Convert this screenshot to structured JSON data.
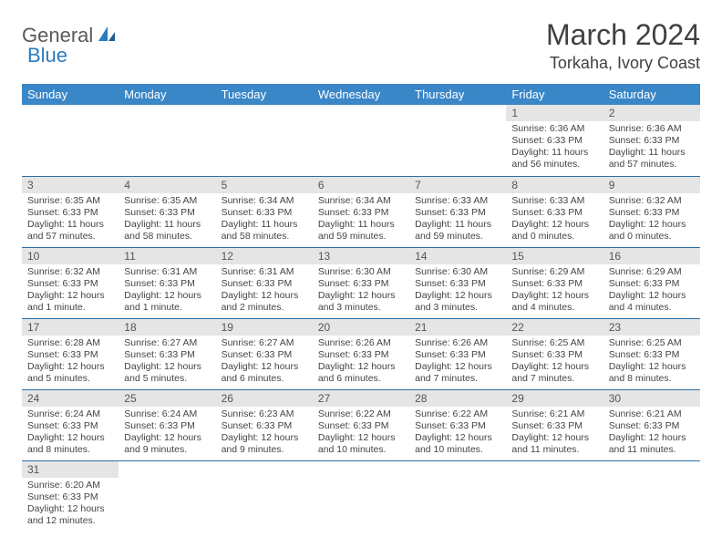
{
  "logo": {
    "part1": "General",
    "part2": "Blue"
  },
  "title": "March 2024",
  "location": "Torkaha, Ivory Coast",
  "colors": {
    "header_bg": "#3a87c8",
    "header_text": "#ffffff",
    "daynum_bg": "#e5e5e5",
    "row_border": "#2b6fa8",
    "logo_blue": "#2b7bbf",
    "logo_gray": "#5a5a5a"
  },
  "weekdays": [
    "Sunday",
    "Monday",
    "Tuesday",
    "Wednesday",
    "Thursday",
    "Friday",
    "Saturday"
  ],
  "weeks": [
    [
      {
        "day": "",
        "lines": []
      },
      {
        "day": "",
        "lines": []
      },
      {
        "day": "",
        "lines": []
      },
      {
        "day": "",
        "lines": []
      },
      {
        "day": "",
        "lines": []
      },
      {
        "day": "1",
        "lines": [
          "Sunrise: 6:36 AM",
          "Sunset: 6:33 PM",
          "Daylight: 11 hours and 56 minutes."
        ]
      },
      {
        "day": "2",
        "lines": [
          "Sunrise: 6:36 AM",
          "Sunset: 6:33 PM",
          "Daylight: 11 hours and 57 minutes."
        ]
      }
    ],
    [
      {
        "day": "3",
        "lines": [
          "Sunrise: 6:35 AM",
          "Sunset: 6:33 PM",
          "Daylight: 11 hours and 57 minutes."
        ]
      },
      {
        "day": "4",
        "lines": [
          "Sunrise: 6:35 AM",
          "Sunset: 6:33 PM",
          "Daylight: 11 hours and 58 minutes."
        ]
      },
      {
        "day": "5",
        "lines": [
          "Sunrise: 6:34 AM",
          "Sunset: 6:33 PM",
          "Daylight: 11 hours and 58 minutes."
        ]
      },
      {
        "day": "6",
        "lines": [
          "Sunrise: 6:34 AM",
          "Sunset: 6:33 PM",
          "Daylight: 11 hours and 59 minutes."
        ]
      },
      {
        "day": "7",
        "lines": [
          "Sunrise: 6:33 AM",
          "Sunset: 6:33 PM",
          "Daylight: 11 hours and 59 minutes."
        ]
      },
      {
        "day": "8",
        "lines": [
          "Sunrise: 6:33 AM",
          "Sunset: 6:33 PM",
          "Daylight: 12 hours and 0 minutes."
        ]
      },
      {
        "day": "9",
        "lines": [
          "Sunrise: 6:32 AM",
          "Sunset: 6:33 PM",
          "Daylight: 12 hours and 0 minutes."
        ]
      }
    ],
    [
      {
        "day": "10",
        "lines": [
          "Sunrise: 6:32 AM",
          "Sunset: 6:33 PM",
          "Daylight: 12 hours and 1 minute."
        ]
      },
      {
        "day": "11",
        "lines": [
          "Sunrise: 6:31 AM",
          "Sunset: 6:33 PM",
          "Daylight: 12 hours and 1 minute."
        ]
      },
      {
        "day": "12",
        "lines": [
          "Sunrise: 6:31 AM",
          "Sunset: 6:33 PM",
          "Daylight: 12 hours and 2 minutes."
        ]
      },
      {
        "day": "13",
        "lines": [
          "Sunrise: 6:30 AM",
          "Sunset: 6:33 PM",
          "Daylight: 12 hours and 3 minutes."
        ]
      },
      {
        "day": "14",
        "lines": [
          "Sunrise: 6:30 AM",
          "Sunset: 6:33 PM",
          "Daylight: 12 hours and 3 minutes."
        ]
      },
      {
        "day": "15",
        "lines": [
          "Sunrise: 6:29 AM",
          "Sunset: 6:33 PM",
          "Daylight: 12 hours and 4 minutes."
        ]
      },
      {
        "day": "16",
        "lines": [
          "Sunrise: 6:29 AM",
          "Sunset: 6:33 PM",
          "Daylight: 12 hours and 4 minutes."
        ]
      }
    ],
    [
      {
        "day": "17",
        "lines": [
          "Sunrise: 6:28 AM",
          "Sunset: 6:33 PM",
          "Daylight: 12 hours and 5 minutes."
        ]
      },
      {
        "day": "18",
        "lines": [
          "Sunrise: 6:27 AM",
          "Sunset: 6:33 PM",
          "Daylight: 12 hours and 5 minutes."
        ]
      },
      {
        "day": "19",
        "lines": [
          "Sunrise: 6:27 AM",
          "Sunset: 6:33 PM",
          "Daylight: 12 hours and 6 minutes."
        ]
      },
      {
        "day": "20",
        "lines": [
          "Sunrise: 6:26 AM",
          "Sunset: 6:33 PM",
          "Daylight: 12 hours and 6 minutes."
        ]
      },
      {
        "day": "21",
        "lines": [
          "Sunrise: 6:26 AM",
          "Sunset: 6:33 PM",
          "Daylight: 12 hours and 7 minutes."
        ]
      },
      {
        "day": "22",
        "lines": [
          "Sunrise: 6:25 AM",
          "Sunset: 6:33 PM",
          "Daylight: 12 hours and 7 minutes."
        ]
      },
      {
        "day": "23",
        "lines": [
          "Sunrise: 6:25 AM",
          "Sunset: 6:33 PM",
          "Daylight: 12 hours and 8 minutes."
        ]
      }
    ],
    [
      {
        "day": "24",
        "lines": [
          "Sunrise: 6:24 AM",
          "Sunset: 6:33 PM",
          "Daylight: 12 hours and 8 minutes."
        ]
      },
      {
        "day": "25",
        "lines": [
          "Sunrise: 6:24 AM",
          "Sunset: 6:33 PM",
          "Daylight: 12 hours and 9 minutes."
        ]
      },
      {
        "day": "26",
        "lines": [
          "Sunrise: 6:23 AM",
          "Sunset: 6:33 PM",
          "Daylight: 12 hours and 9 minutes."
        ]
      },
      {
        "day": "27",
        "lines": [
          "Sunrise: 6:22 AM",
          "Sunset: 6:33 PM",
          "Daylight: 12 hours and 10 minutes."
        ]
      },
      {
        "day": "28",
        "lines": [
          "Sunrise: 6:22 AM",
          "Sunset: 6:33 PM",
          "Daylight: 12 hours and 10 minutes."
        ]
      },
      {
        "day": "29",
        "lines": [
          "Sunrise: 6:21 AM",
          "Sunset: 6:33 PM",
          "Daylight: 12 hours and 11 minutes."
        ]
      },
      {
        "day": "30",
        "lines": [
          "Sunrise: 6:21 AM",
          "Sunset: 6:33 PM",
          "Daylight: 12 hours and 11 minutes."
        ]
      }
    ],
    [
      {
        "day": "31",
        "lines": [
          "Sunrise: 6:20 AM",
          "Sunset: 6:33 PM",
          "Daylight: 12 hours and 12 minutes."
        ]
      },
      {
        "day": "",
        "lines": []
      },
      {
        "day": "",
        "lines": []
      },
      {
        "day": "",
        "lines": []
      },
      {
        "day": "",
        "lines": []
      },
      {
        "day": "",
        "lines": []
      },
      {
        "day": "",
        "lines": []
      }
    ]
  ]
}
